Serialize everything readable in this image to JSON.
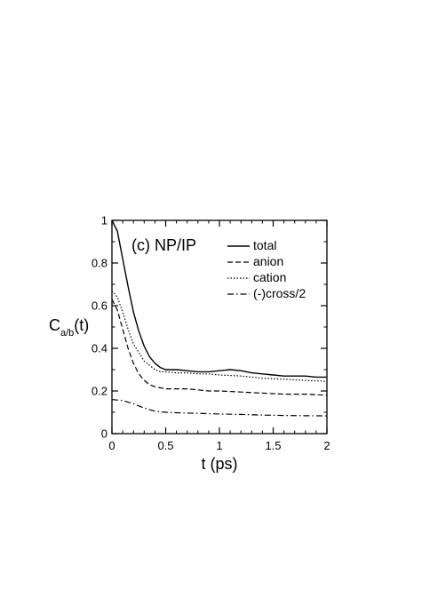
{
  "chart_data": {
    "type": "line",
    "panel_label": "(c) NP/IP",
    "xlabel": "t (ps)",
    "ylabel_main": "C",
    "ylabel_sub": "a/b",
    "ylabel_tail": "(t)",
    "xlim": [
      0,
      2
    ],
    "ylim": [
      0,
      1
    ],
    "x_ticks": [
      {
        "value": 0,
        "label": "0"
      },
      {
        "value": 0.5,
        "label": "0.5"
      },
      {
        "value": 1,
        "label": "1"
      },
      {
        "value": 1.5,
        "label": "1.5"
      },
      {
        "value": 2,
        "label": "2"
      }
    ],
    "y_ticks": [
      {
        "value": 0,
        "label": "0"
      },
      {
        "value": 0.2,
        "label": "0.2"
      },
      {
        "value": 0.4,
        "label": "0.4"
      },
      {
        "value": 0.6,
        "label": "0.6"
      },
      {
        "value": 0.8,
        "label": "0.8"
      },
      {
        "value": 1,
        "label": "1"
      }
    ],
    "grid": false,
    "legend_position": "top-right",
    "series": [
      {
        "name": "total",
        "dash": "solid",
        "x": [
          0,
          0.05,
          0.1,
          0.15,
          0.2,
          0.25,
          0.3,
          0.35,
          0.4,
          0.45,
          0.5,
          0.6,
          0.7,
          0.8,
          0.9,
          1.0,
          1.1,
          1.2,
          1.3,
          1.4,
          1.5,
          1.6,
          1.7,
          1.8,
          1.9,
          2.0
        ],
        "y": [
          1.0,
          0.95,
          0.82,
          0.69,
          0.57,
          0.48,
          0.41,
          0.36,
          0.33,
          0.31,
          0.3,
          0.3,
          0.295,
          0.29,
          0.29,
          0.295,
          0.3,
          0.295,
          0.285,
          0.28,
          0.275,
          0.27,
          0.27,
          0.27,
          0.265,
          0.265
        ]
      },
      {
        "name": "anion",
        "dash": "dashed",
        "x": [
          0,
          0.05,
          0.1,
          0.15,
          0.2,
          0.25,
          0.3,
          0.35,
          0.4,
          0.45,
          0.5,
          0.6,
          0.7,
          0.8,
          0.9,
          1.0,
          1.2,
          1.4,
          1.6,
          1.8,
          2.0
        ],
        "y": [
          0.63,
          0.58,
          0.49,
          0.4,
          0.33,
          0.28,
          0.25,
          0.23,
          0.22,
          0.215,
          0.21,
          0.21,
          0.21,
          0.205,
          0.2,
          0.2,
          0.195,
          0.19,
          0.185,
          0.185,
          0.18
        ]
      },
      {
        "name": "cation",
        "dash": "dotted",
        "x": [
          0,
          0.05,
          0.1,
          0.15,
          0.2,
          0.25,
          0.3,
          0.35,
          0.4,
          0.45,
          0.5,
          0.6,
          0.7,
          0.8,
          0.9,
          1.0,
          1.2,
          1.4,
          1.6,
          1.8,
          2.0
        ],
        "y": [
          0.67,
          0.64,
          0.57,
          0.49,
          0.42,
          0.38,
          0.34,
          0.32,
          0.3,
          0.29,
          0.29,
          0.285,
          0.285,
          0.28,
          0.28,
          0.275,
          0.27,
          0.26,
          0.255,
          0.25,
          0.245
        ]
      },
      {
        "name": "(-)cross/2",
        "dash": "dashdot",
        "x": [
          0,
          0.1,
          0.2,
          0.3,
          0.4,
          0.5,
          0.6,
          0.8,
          1.0,
          1.2,
          1.4,
          1.6,
          1.8,
          2.0
        ],
        "y": [
          0.16,
          0.155,
          0.14,
          0.12,
          0.105,
          0.1,
          0.098,
          0.095,
          0.092,
          0.09,
          0.087,
          0.085,
          0.084,
          0.083
        ]
      }
    ]
  }
}
